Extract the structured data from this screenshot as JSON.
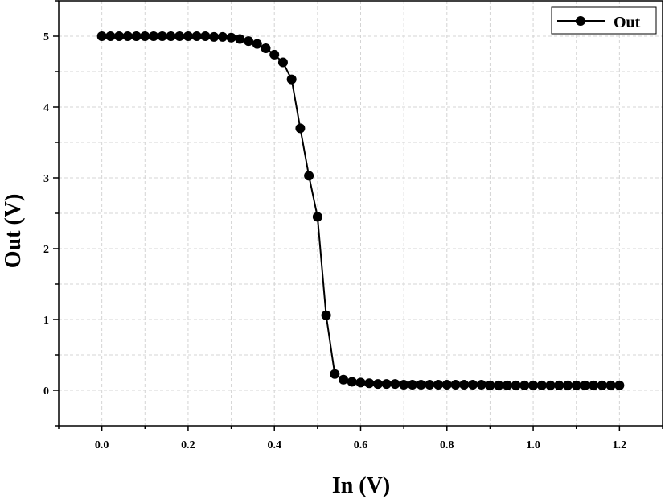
{
  "chart_data": {
    "type": "line",
    "xlabel": "In (V)",
    "ylabel": "Out (V)",
    "xlim": [
      -0.1,
      1.3
    ],
    "ylim": [
      -0.5,
      5.5
    ],
    "grid": true,
    "legend_position": "top-right",
    "x_ticks": [
      "0.0",
      "0.2",
      "0.4",
      "0.6",
      "0.8",
      "1.0",
      "1.2"
    ],
    "y_ticks": [
      "0",
      "1",
      "2",
      "3",
      "4",
      "5"
    ],
    "series": [
      {
        "name": "Out",
        "color": "#000000",
        "marker": "circle",
        "x": [
          0.0,
          0.02,
          0.04,
          0.06,
          0.08,
          0.1,
          0.12,
          0.14,
          0.16,
          0.18,
          0.2,
          0.22,
          0.24,
          0.26,
          0.28,
          0.3,
          0.32,
          0.34,
          0.36,
          0.38,
          0.4,
          0.42,
          0.44,
          0.46,
          0.48,
          0.5,
          0.52,
          0.54,
          0.56,
          0.58,
          0.6,
          0.62,
          0.64,
          0.66,
          0.68,
          0.7,
          0.72,
          0.74,
          0.76,
          0.78,
          0.8,
          0.82,
          0.84,
          0.86,
          0.88,
          0.9,
          0.92,
          0.94,
          0.96,
          0.98,
          1.0,
          1.02,
          1.04,
          1.06,
          1.08,
          1.1,
          1.12,
          1.14,
          1.16,
          1.18,
          1.2
        ],
        "y": [
          5.0,
          5.0,
          5.0,
          5.0,
          5.0,
          5.0,
          5.0,
          5.0,
          5.0,
          5.0,
          5.0,
          5.0,
          5.0,
          4.99,
          4.99,
          4.98,
          4.96,
          4.93,
          4.89,
          4.83,
          4.74,
          4.63,
          4.39,
          3.7,
          3.03,
          2.45,
          1.06,
          0.23,
          0.15,
          0.12,
          0.11,
          0.1,
          0.09,
          0.09,
          0.09,
          0.08,
          0.08,
          0.08,
          0.08,
          0.08,
          0.08,
          0.08,
          0.08,
          0.08,
          0.08,
          0.07,
          0.07,
          0.07,
          0.07,
          0.07,
          0.07,
          0.07,
          0.07,
          0.07,
          0.07,
          0.07,
          0.07,
          0.07,
          0.07,
          0.07,
          0.07
        ]
      }
    ]
  }
}
